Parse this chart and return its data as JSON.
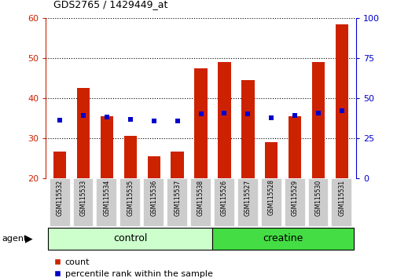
{
  "title": "GDS2765 / 1429449_at",
  "categories": [
    "GSM115532",
    "GSM115533",
    "GSM115534",
    "GSM115535",
    "GSM115536",
    "GSM115537",
    "GSM115538",
    "GSM115526",
    "GSM115527",
    "GSM115528",
    "GSM115529",
    "GSM115530",
    "GSM115531"
  ],
  "counts": [
    26.5,
    42.5,
    35.5,
    30.5,
    25.5,
    26.5,
    47.5,
    49.0,
    44.5,
    29.0,
    35.5,
    49.0,
    58.5
  ],
  "percentile_ranks": [
    36,
    39,
    38,
    36.5,
    35.5,
    35.5,
    40,
    40.5,
    40,
    37.5,
    39,
    40.5,
    42
  ],
  "ylim_left": [
    20,
    60
  ],
  "ylim_right": [
    0,
    100
  ],
  "yticks_left": [
    20,
    30,
    40,
    50,
    60
  ],
  "yticks_right": [
    0,
    25,
    50,
    75,
    100
  ],
  "bar_color": "#cc2200",
  "dot_color": "#0000cc",
  "control_color": "#ccffcc",
  "creatine_color": "#44dd44",
  "tick_bg_color": "#cccccc",
  "control_label": "control",
  "creatine_label": "creatine",
  "agent_label": "agent",
  "legend_count": "count",
  "legend_percentile": "percentile rank within the sample",
  "n_control": 7,
  "n_creatine": 6,
  "bg_color": "#ffffff"
}
